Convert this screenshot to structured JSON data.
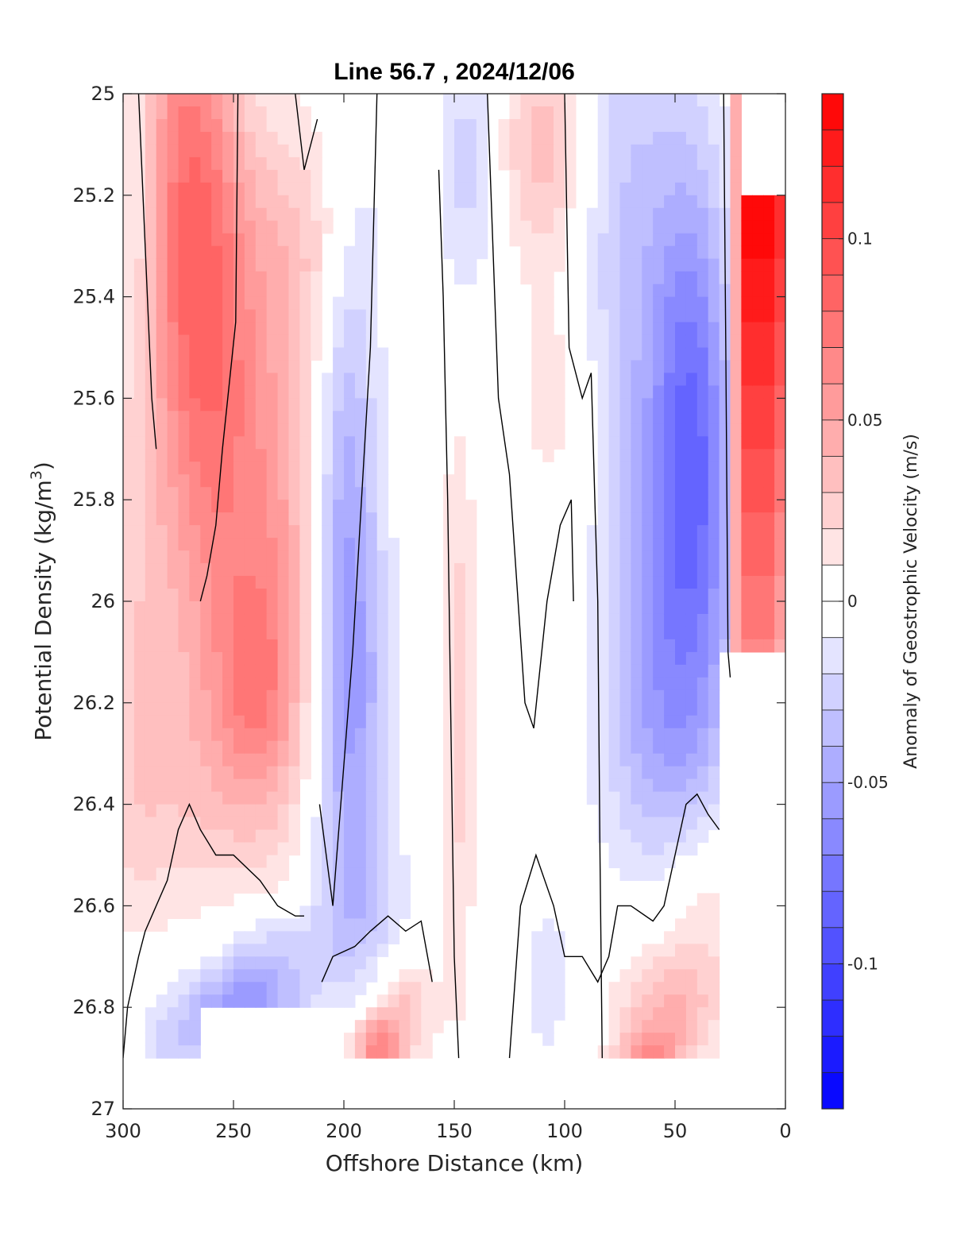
{
  "chart_data": {
    "type": "heatmap",
    "title": "Line 56.7 , 2024/12/06",
    "xlabel": "Offshore Distance (km)",
    "ylabel_main": "Potential Density (kg/m",
    "ylabel_sup": "3",
    "ylabel_close": ")",
    "xlim": [
      300,
      0
    ],
    "ylim": [
      25,
      27
    ],
    "x_reversed": true,
    "y_reversed": true,
    "xticks": [
      300,
      250,
      200,
      150,
      100,
      50,
      0
    ],
    "xtick_labels": [
      "300",
      "250",
      "200",
      "150",
      "100",
      "50",
      "0"
    ],
    "yticks": [
      25,
      25.2,
      25.4,
      25.6,
      25.8,
      26,
      26.2,
      26.4,
      26.6,
      26.8,
      27
    ],
    "ytick_labels": [
      "25",
      "25.2",
      "25.4",
      "25.6",
      "25.8",
      "26",
      "26.2",
      "26.4",
      "26.6",
      "26.8",
      "27"
    ],
    "colorbar": {
      "label": "Anomaly of Geostrophic Velocity (m/s)",
      "range": [
        -0.14,
        0.14
      ],
      "levels": 28,
      "ticks": [
        0.1,
        0.05,
        0,
        -0.05,
        -0.1
      ],
      "tick_labels": [
        "0.1",
        "0.05",
        "0",
        "-0.05",
        "-0.1"
      ],
      "colormap": "blue-white-red",
      "neg_color": "#0000ff",
      "zero_color": "#ffffff",
      "pos_color": "#ff0000"
    },
    "zero_contour_color": "#000000",
    "features": [
      {
        "x": 255,
        "y": [
          25.0,
          25.9
        ],
        "value": 0.07
      },
      {
        "x": 245,
        "y": [
          26.0,
          26.3
        ],
        "value": 0.035
      },
      {
        "x": 198,
        "y": [
          26.1,
          26.3
        ],
        "value": -0.055
      },
      {
        "x": 250,
        "y": [
          26.75,
          26.85
        ],
        "value": -0.055
      },
      {
        "x": 42,
        "y": [
          25.0,
          25.6
        ],
        "value": -0.065
      },
      {
        "x": 8,
        "y": [
          25.2,
          25.5
        ],
        "value": 0.14
      },
      {
        "x": 180,
        "y": [
          26.85,
          26.9
        ],
        "value": 0.06
      },
      {
        "x": 65,
        "y": [
          26.85,
          26.9
        ],
        "value": 0.04
      }
    ]
  }
}
